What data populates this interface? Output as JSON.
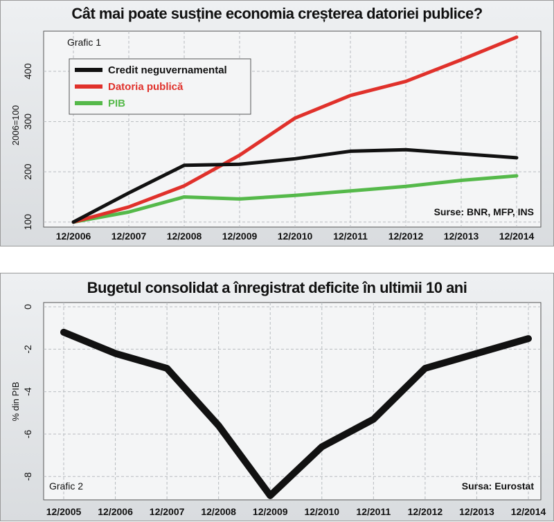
{
  "chart_data": [
    {
      "type": "line",
      "title": "Cât mai poate susține economia creșterea datoriei publice?",
      "panel_label": "Grafic 1",
      "ylabel": "2006=100",
      "source": "Surse: BNR, MFP, INS",
      "categories": [
        "12/2006",
        "12/2007",
        "12/2008",
        "12/2009",
        "12/2010",
        "12/2011",
        "12/2012",
        "12/2013",
        "12/2014"
      ],
      "yticks": [
        100,
        200,
        300,
        400
      ],
      "ylim": [
        90,
        480
      ],
      "grid": true,
      "legend_position": "top-left",
      "series": [
        {
          "name": "Credit neguvernamental",
          "color": "#111111",
          "values": [
            100,
            158,
            213,
            215,
            226,
            241,
            244,
            236,
            228
          ]
        },
        {
          "name": "Datoria publică",
          "color": "#e0312b",
          "values": [
            100,
            130,
            172,
            233,
            307,
            352,
            380,
            423,
            468
          ]
        },
        {
          "name": "PIB",
          "color": "#55b94a",
          "values": [
            100,
            120,
            150,
            146,
            153,
            162,
            171,
            183,
            192
          ]
        }
      ]
    },
    {
      "type": "line",
      "title": "Bugetul consolidat a înregistrat deficite în ultimii 10 ani",
      "panel_label": "Grafic 2",
      "ylabel": "% din PIB",
      "source": "Sursa: Eurostat",
      "categories": [
        "12/2005",
        "12/2006",
        "12/2007",
        "12/2008",
        "12/2009",
        "12/2010",
        "12/2011",
        "12/2012",
        "12/2013",
        "12/2014"
      ],
      "yticks": [
        0,
        -2,
        -4,
        -6,
        -8
      ],
      "ylim": [
        -9.1,
        0.2
      ],
      "grid": true,
      "series": [
        {
          "name": "",
          "color": "#111111",
          "values": [
            -1.2,
            -2.2,
            -2.9,
            -5.6,
            -8.9,
            -6.6,
            -5.3,
            -2.9,
            -2.2,
            -1.5
          ]
        }
      ]
    }
  ]
}
